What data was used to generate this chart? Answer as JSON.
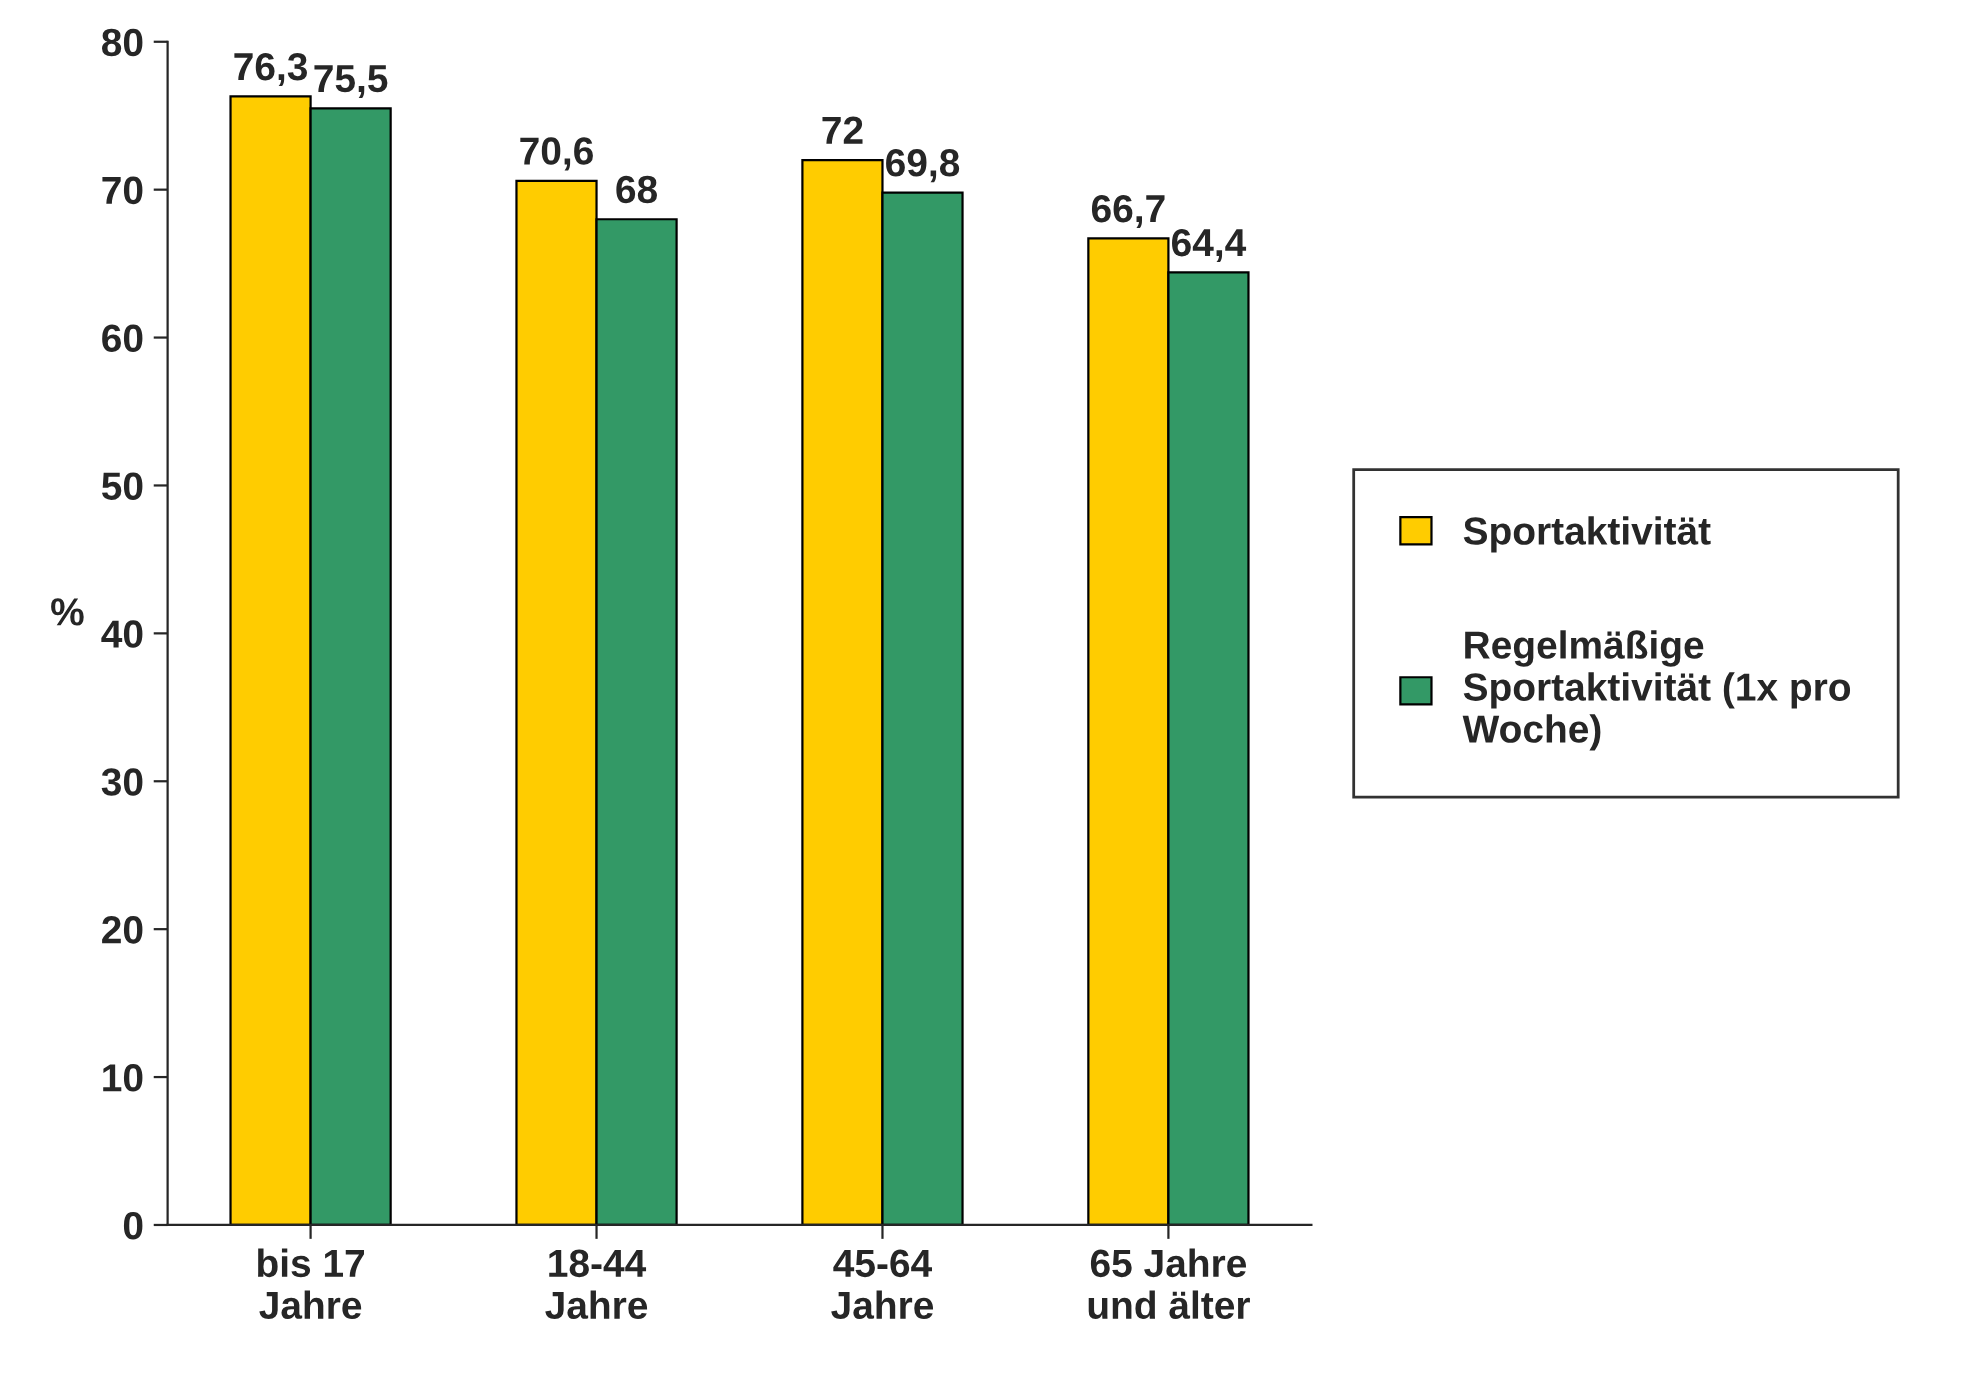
{
  "chart_data": {
    "type": "bar",
    "ylabel": "%",
    "categories": [
      "bis 17\nJahre",
      "18-44\nJahre",
      "45-64\nJahre",
      "65 Jahre\nund älter"
    ],
    "series": [
      {
        "name": "Sportaktivität",
        "color": "#ffcc00",
        "values": [
          76.3,
          70.6,
          72,
          66.7
        ],
        "value_labels": [
          "76,3",
          "70,6",
          "72",
          "66,7"
        ]
      },
      {
        "name": "Regelmäßige Sportaktivität (1x pro Woche)",
        "color": "#339966",
        "values": [
          75.5,
          68,
          69.8,
          64.4
        ],
        "value_labels": [
          "75,5",
          "68",
          "69,8",
          "64,4"
        ]
      }
    ],
    "ylim": [
      0,
      80
    ],
    "yticks": [
      0,
      10,
      20,
      30,
      40,
      50,
      60,
      70,
      80
    ],
    "grid": false,
    "legend": "right"
  }
}
